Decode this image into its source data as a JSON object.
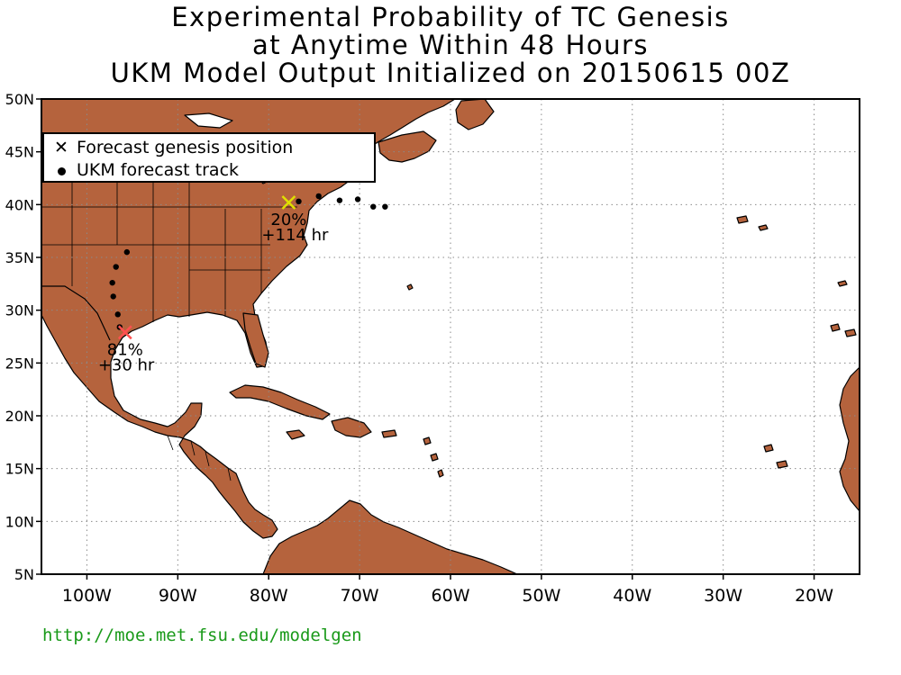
{
  "title": {
    "line1": "Experimental Probability of TC Genesis",
    "line2": "at Anytime Within 48 Hours",
    "line3": "UKM Model Output Initialized on 20150615 00Z"
  },
  "legend": {
    "genesis_label": "Forecast genesis position",
    "track_label": "UKM forecast track",
    "genesis_icon": "x-mark-icon",
    "track_icon": "dot-icon"
  },
  "url": "http://moe.met.fsu.edu/modelgen",
  "colors": {
    "land": "#b5633d",
    "ocean": "#ffffff",
    "genesis_gulf": "#ff5050",
    "genesis_northeast": "#e0e000",
    "url": "#1a9a1a"
  },
  "axes": {
    "lon_min": -105,
    "lon_max": -15,
    "lat_min": 5,
    "lat_max": 50,
    "lon_ticks": [
      {
        "value": -100,
        "label": "100W"
      },
      {
        "value": -90,
        "label": "90W"
      },
      {
        "value": -80,
        "label": "80W"
      },
      {
        "value": -70,
        "label": "70W"
      },
      {
        "value": -60,
        "label": "60W"
      },
      {
        "value": -50,
        "label": "50W"
      },
      {
        "value": -40,
        "label": "40W"
      },
      {
        "value": -30,
        "label": "30W"
      },
      {
        "value": -20,
        "label": "20W"
      }
    ],
    "lat_ticks": [
      {
        "value": 5,
        "label": "5N"
      },
      {
        "value": 10,
        "label": "10N"
      },
      {
        "value": 15,
        "label": "15N"
      },
      {
        "value": 20,
        "label": "20N"
      },
      {
        "value": 25,
        "label": "25N"
      },
      {
        "value": 30,
        "label": "30N"
      },
      {
        "value": 35,
        "label": "35N"
      },
      {
        "value": 40,
        "label": "40N"
      },
      {
        "value": 45,
        "label": "45N"
      },
      {
        "value": 50,
        "label": "50N"
      }
    ],
    "grid": true
  },
  "genesis_points": [
    {
      "lon": -95.8,
      "lat": 27.9,
      "prob": "81%",
      "time": "+30 hr",
      "color": "#ff5050"
    },
    {
      "lon": -77.8,
      "lat": 40.2,
      "prob": "20%",
      "time": "+114 hr",
      "color": "#e0e000"
    }
  ],
  "tracks": [
    {
      "points": [
        [
          -96.4,
          28.4
        ],
        [
          -96.6,
          29.6
        ],
        [
          -97.1,
          31.3
        ],
        [
          -97.2,
          32.6
        ],
        [
          -96.8,
          34.1
        ],
        [
          -95.6,
          35.5
        ]
      ]
    },
    {
      "points": [
        [
          -76.7,
          40.3
        ],
        [
          -74.5,
          40.8
        ],
        [
          -72.2,
          40.4
        ],
        [
          -70.2,
          40.5
        ],
        [
          -68.5,
          39.8
        ],
        [
          -67.2,
          39.8
        ]
      ]
    }
  ]
}
